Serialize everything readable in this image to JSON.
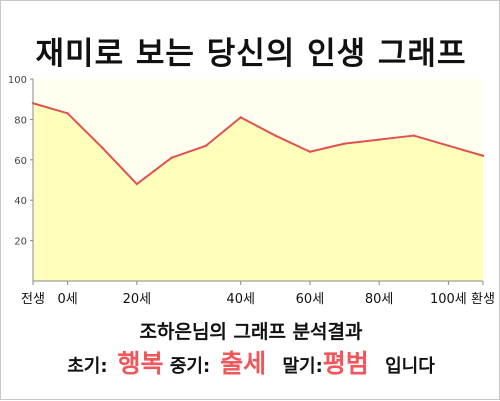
{
  "title": "재미로 보는 당신의 인생 그래프",
  "summary": "조하은님의 그래프 분석결과",
  "result": {
    "early_label": "초기:",
    "early_value": "행복",
    "middle_label": "중기:",
    "middle_value": "출세",
    "late_label": "말기:",
    "late_value": "평범",
    "suffix": "입니다"
  },
  "colors": {
    "line": "#e05252",
    "fill": "#ffffbb",
    "plot_bg": "#fffff0",
    "highlight": "#f0565a",
    "axis": "#888888",
    "tick_text": "#444444"
  },
  "chart_data": {
    "type": "area",
    "title": "",
    "xlabel": "",
    "ylabel": "",
    "ylim": [
      0,
      100
    ],
    "y_ticks": [
      "20",
      "40",
      "60",
      "80",
      "100"
    ],
    "x_ticks": [
      "전생",
      "0세",
      "20세",
      "40세",
      "60세",
      "80세",
      "100세",
      "환생"
    ],
    "x": [
      "전생",
      "0세",
      "",
      "20세",
      "",
      "",
      "40세",
      "",
      "60세",
      "",
      "80세",
      "",
      "100세",
      "환생"
    ],
    "values": [
      88,
      83,
      66,
      48,
      61,
      67,
      81,
      72,
      64,
      68,
      70,
      72,
      67,
      62
    ],
    "grid": false
  }
}
